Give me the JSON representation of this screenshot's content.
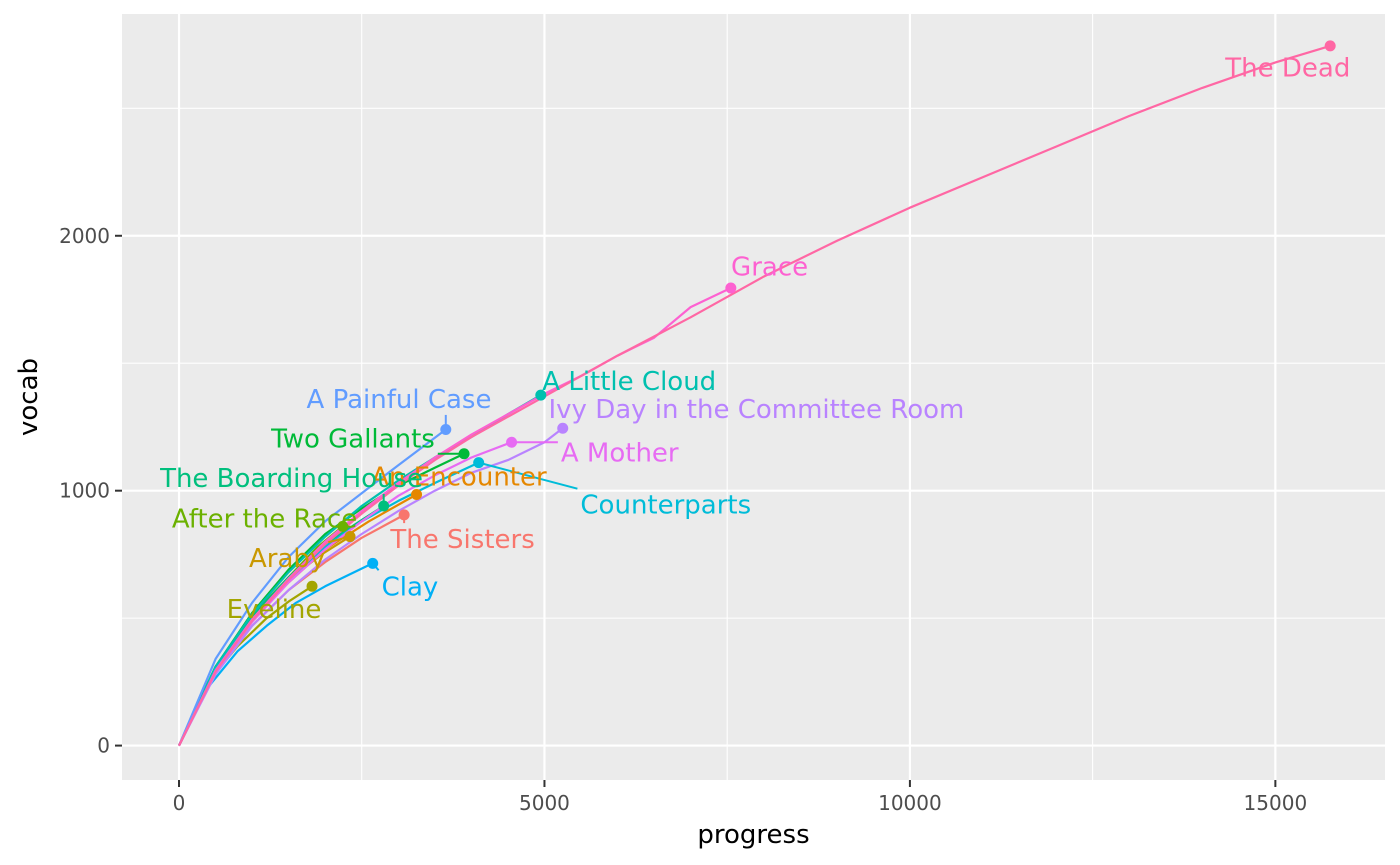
{
  "chart_data": {
    "type": "line",
    "xlabel": "progress",
    "ylabel": "vocab",
    "xlim": [
      -780,
      16500
    ],
    "ylim": [
      -135,
      2870
    ],
    "x_ticks": [
      0,
      5000,
      10000,
      15000
    ],
    "y_ticks": [
      0,
      1000,
      2000
    ],
    "grid": true,
    "legend": "none",
    "series": [
      {
        "name": "The Sisters",
        "color": "#F8766D",
        "end": [
          3080,
          905
        ],
        "label_at": [
          3880,
          810
        ],
        "points": [
          [
            0,
            0
          ],
          [
            500,
            290
          ],
          [
            1000,
            470
          ],
          [
            1500,
            610
          ],
          [
            2000,
            720
          ],
          [
            2500,
            815
          ],
          [
            3080,
            905
          ]
        ]
      },
      {
        "name": "An Encounter",
        "color": "#E58700",
        "end": [
          3250,
          985
        ],
        "label_at": [
          3830,
          1055
        ],
        "points": [
          [
            0,
            0
          ],
          [
            500,
            300
          ],
          [
            1000,
            490
          ],
          [
            1500,
            640
          ],
          [
            2000,
            770
          ],
          [
            2600,
            880
          ],
          [
            3250,
            985
          ]
        ]
      },
      {
        "name": "Araby",
        "color": "#C99800",
        "end": [
          2340,
          820
        ],
        "label_at": [
          1480,
          735
        ],
        "points": [
          [
            0,
            0
          ],
          [
            500,
            300
          ],
          [
            1000,
            500
          ],
          [
            1500,
            650
          ],
          [
            1950,
            750
          ],
          [
            2340,
            820
          ]
        ]
      },
      {
        "name": "Eveline",
        "color": "#A3A500",
        "end": [
          1820,
          625
        ],
        "label_at": [
          1300,
          535
        ],
        "points": [
          [
            0,
            0
          ],
          [
            400,
            250
          ],
          [
            800,
            390
          ],
          [
            1200,
            500
          ],
          [
            1500,
            565
          ],
          [
            1820,
            625
          ]
        ]
      },
      {
        "name": "After the Race",
        "color": "#6BB100",
        "end": [
          2240,
          860
        ],
        "label_at": [
          1170,
          890
        ],
        "points": [
          [
            0,
            0
          ],
          [
            500,
            310
          ],
          [
            1000,
            510
          ],
          [
            1500,
            660
          ],
          [
            1900,
            780
          ],
          [
            2240,
            860
          ]
        ]
      },
      {
        "name": "Two Gallants",
        "color": "#00BA38",
        "end": [
          3900,
          1145
        ],
        "label_at": [
          2380,
          1205
        ],
        "points": [
          [
            0,
            0
          ],
          [
            500,
            310
          ],
          [
            1000,
            520
          ],
          [
            1500,
            690
          ],
          [
            2000,
            830
          ],
          [
            2500,
            930
          ],
          [
            3000,
            1020
          ],
          [
            3500,
            1090
          ],
          [
            3900,
            1145
          ]
        ]
      },
      {
        "name": "The Boarding House",
        "color": "#00BF7D",
        "end": [
          2800,
          940
        ],
        "label_at": [
          1540,
          1050
        ],
        "points": [
          [
            0,
            0
          ],
          [
            500,
            305
          ],
          [
            1000,
            505
          ],
          [
            1500,
            660
          ],
          [
            2000,
            790
          ],
          [
            2500,
            885
          ],
          [
            2800,
            940
          ]
        ]
      },
      {
        "name": "A Little Cloud",
        "color": "#00C0AF",
        "end": [
          4950,
          1375
        ],
        "label_at": [
          6160,
          1430
        ],
        "points": [
          [
            0,
            0
          ],
          [
            500,
            310
          ],
          [
            1000,
            515
          ],
          [
            1500,
            680
          ],
          [
            2000,
            820
          ],
          [
            2500,
            940
          ],
          [
            3000,
            1040
          ],
          [
            3500,
            1130
          ],
          [
            4000,
            1210
          ],
          [
            4500,
            1300
          ],
          [
            4950,
            1375
          ]
        ]
      },
      {
        "name": "Counterparts",
        "color": "#00BCD8",
        "end": [
          4100,
          1110
        ],
        "label_at": [
          6660,
          945
        ],
        "points": [
          [
            0,
            0
          ],
          [
            500,
            300
          ],
          [
            1000,
            495
          ],
          [
            1500,
            650
          ],
          [
            2000,
            780
          ],
          [
            2500,
            880
          ],
          [
            3000,
            960
          ],
          [
            3500,
            1030
          ],
          [
            4100,
            1110
          ]
        ]
      },
      {
        "name": "Clay",
        "color": "#00B0F6",
        "end": [
          2650,
          715
        ],
        "label_at": [
          3160,
          625
        ],
        "points": [
          [
            0,
            0
          ],
          [
            400,
            230
          ],
          [
            800,
            370
          ],
          [
            1200,
            470
          ],
          [
            1600,
            560
          ],
          [
            2000,
            625
          ],
          [
            2650,
            715
          ]
        ]
      },
      {
        "name": "A Painful Case",
        "color": "#619CFF",
        "end": [
          3650,
          1240
        ],
        "label_at": [
          3010,
          1360
        ],
        "points": [
          [
            0,
            0
          ],
          [
            500,
            340
          ],
          [
            1000,
            560
          ],
          [
            1500,
            740
          ],
          [
            2000,
            880
          ],
          [
            2500,
            990
          ],
          [
            3000,
            1100
          ],
          [
            3650,
            1240
          ]
        ]
      },
      {
        "name": "Ivy Day in the Committee Room",
        "color": "#B983FF",
        "end": [
          5250,
          1245
        ],
        "label_at": [
          7900,
          1320
        ],
        "points": [
          [
            0,
            0
          ],
          [
            500,
            280
          ],
          [
            1000,
            470
          ],
          [
            1500,
            610
          ],
          [
            2000,
            730
          ],
          [
            2500,
            830
          ],
          [
            3000,
            920
          ],
          [
            3500,
            1000
          ],
          [
            4000,
            1070
          ],
          [
            4500,
            1120
          ],
          [
            5000,
            1190
          ],
          [
            5250,
            1245
          ]
        ]
      },
      {
        "name": "A Mother",
        "color": "#E76BF3",
        "end": [
          4550,
          1190
        ],
        "label_at": [
          6030,
          1150
        ],
        "points": [
          [
            0,
            0
          ],
          [
            500,
            290
          ],
          [
            1000,
            485
          ],
          [
            1500,
            640
          ],
          [
            2000,
            770
          ],
          [
            2500,
            880
          ],
          [
            3000,
            980
          ],
          [
            3500,
            1060
          ],
          [
            4000,
            1130
          ],
          [
            4550,
            1190
          ]
        ]
      },
      {
        "name": "Grace",
        "color": "#FD61D1",
        "end": [
          7550,
          1795
        ],
        "label_at": [
          8080,
          1880
        ],
        "points": [
          [
            0,
            0
          ],
          [
            500,
            295
          ],
          [
            1000,
            495
          ],
          [
            1500,
            655
          ],
          [
            2000,
            800
          ],
          [
            2500,
            920
          ],
          [
            3000,
            1030
          ],
          [
            3500,
            1130
          ],
          [
            4000,
            1220
          ],
          [
            4500,
            1300
          ],
          [
            5000,
            1380
          ],
          [
            5500,
            1450
          ],
          [
            6000,
            1530
          ],
          [
            6500,
            1600
          ],
          [
            7000,
            1720
          ],
          [
            7550,
            1795
          ]
        ]
      },
      {
        "name": "The Dead",
        "color": "#FF67A4",
        "end": [
          15750,
          2745
        ],
        "label_at": [
          15170,
          2660
        ],
        "points": [
          [
            0,
            0
          ],
          [
            500,
            290
          ],
          [
            1000,
            490
          ],
          [
            1500,
            650
          ],
          [
            2000,
            790
          ],
          [
            2500,
            910
          ],
          [
            3000,
            1020
          ],
          [
            3500,
            1120
          ],
          [
            4000,
            1210
          ],
          [
            5000,
            1370
          ],
          [
            6000,
            1530
          ],
          [
            7000,
            1680
          ],
          [
            7500,
            1760
          ],
          [
            8000,
            1840
          ],
          [
            9000,
            1980
          ],
          [
            10000,
            2110
          ],
          [
            11000,
            2230
          ],
          [
            12000,
            2350
          ],
          [
            13000,
            2470
          ],
          [
            14000,
            2580
          ],
          [
            15000,
            2680
          ],
          [
            15750,
            2745
          ]
        ]
      }
    ]
  }
}
